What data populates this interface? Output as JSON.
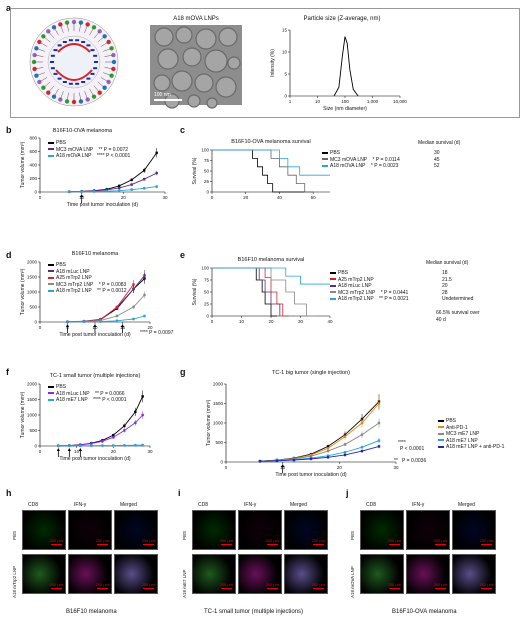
{
  "panels": {
    "a": {
      "label": "a",
      "tem_title": "A18 mOVA LNPs",
      "tem_scale": "100 nm",
      "dls_title": "Particle size (Z-average, nm)"
    },
    "b": {
      "label": "b"
    },
    "c": {
      "label": "c"
    },
    "d": {
      "label": "d"
    },
    "e": {
      "label": "e"
    },
    "f": {
      "label": "f"
    },
    "g": {
      "label": "g"
    },
    "h": {
      "label": "h"
    },
    "i": {
      "label": "i"
    },
    "j": {
      "label": "j"
    }
  },
  "legend_b": [
    {
      "name": "PBS",
      "color": "#000000",
      "stat": ""
    },
    {
      "name": "MC3 mOVA LNP",
      "color": "#5b2a86",
      "stat": "** P = 0.0072"
    },
    {
      "name": "A18 mOVA LNP",
      "color": "#29a3d8",
      "stat": "**** P < 0.0001"
    }
  ],
  "legend_c": {
    "header": "Median survival (d)",
    "rows": [
      {
        "name": "PBS",
        "color": "#000000",
        "stat": "",
        "median": "30"
      },
      {
        "name": "MC3 mOVA LNP",
        "color": "#666666",
        "stat": "* P = 0.0114",
        "median": "45"
      },
      {
        "name": "A18 mOVA LNP",
        "color": "#29a3d8",
        "stat": "* P = 0.0023",
        "median": "52"
      }
    ]
  },
  "legend_d": [
    {
      "name": "PBS",
      "color": "#000000",
      "stat": ""
    },
    {
      "name": "A18 mLuc LNP",
      "color": "#5b2a86",
      "stat": ""
    },
    {
      "name": "A25 mTrp2 LNP",
      "color": "#d8232a",
      "stat": ""
    },
    {
      "name": "MC3 mTrp2 LNP",
      "color": "#888888",
      "stat": "* P = 0.0083"
    },
    {
      "name": "A18 mTrp2 LNP",
      "color": "#29a3d8",
      "stat": "** P = 0.0012"
    }
  ],
  "legend_e": {
    "header": "Median survival (d)",
    "rows": [
      {
        "name": "PBS",
        "color": "#000000",
        "stat": "",
        "median": "18"
      },
      {
        "name": "A25 mTrp2 LNP",
        "color": "#d8232a",
        "stat": "",
        "median": "21.5"
      },
      {
        "name": "A18 mLuc LNP",
        "color": "#5b2a86",
        "stat": "",
        "median": "20"
      },
      {
        "name": "MC3 mTrp2 LNP",
        "color": "#888888",
        "stat": "* P = 0.0441",
        "median": "28"
      },
      {
        "name": "A18 mTrp2 LNP",
        "color": "#29a3d8",
        "stat": "** P = 0.0021",
        "median": "Undetermined"
      }
    ],
    "note": "66.5% survival over 40 d"
  },
  "legend_f": [
    {
      "name": "PBS",
      "color": "#000000",
      "stat": ""
    },
    {
      "name": "A18 mLuc LNP",
      "color": "#8a2be2",
      "stat": "** P = 0.0066"
    },
    {
      "name": "A18 mE7 LNP",
      "color": "#29a3d8",
      "stat": "**** P < 0.0001"
    }
  ],
  "legend_g": [
    {
      "name": "PBS",
      "color": "#000000"
    },
    {
      "name": "Anti-PD-1",
      "color": "#e08a1e"
    },
    {
      "name": "MC3 mE7 LNP",
      "color": "#888888"
    },
    {
      "name": "A18 mE7 LNP",
      "color": "#29a3d8"
    },
    {
      "name": "A18 mE7 LNP + anti-PD-1",
      "color": "#1f2aa8"
    }
  ],
  "g_stats": {
    "s1": "****",
    "s2": "P < 0.0001",
    "s3": "**",
    "s4": "P = 0.0036"
  },
  "b_stat": "**** P = 0.0097",
  "microscopy": {
    "cols": [
      "CD8",
      "IFN-γ",
      "Merged"
    ],
    "scale": "200 μm",
    "h": {
      "rows": [
        "PBS",
        "A18 mTrp2 LNP"
      ],
      "caption": "B16F10 melanoma"
    },
    "i": {
      "rows": [
        "PBS",
        "A18 mE7 LNP"
      ],
      "caption": "TC-1 small tumor (multiple injections)"
    },
    "j": {
      "rows": [
        "PBS",
        "A18 mOVA LNP"
      ],
      "caption": "B16F10-OVA melanoma"
    }
  },
  "chart_data": [
    {
      "id": "a-dls",
      "type": "line",
      "title": "Particle size (Z-average, nm)",
      "xlabel": "Size (nm diameter)",
      "ylabel": "Intensity (%)",
      "xscale": "log",
      "xlim": [
        1,
        10000
      ],
      "xticks": [
        "1",
        "10",
        "100",
        "1,000",
        "10,000"
      ],
      "ylim": [
        0,
        15
      ],
      "yticks": [
        0,
        5,
        10,
        15
      ],
      "series": [
        {
          "x": [
            40,
            60,
            80,
            100,
            120,
            150,
            200,
            300
          ],
          "y": [
            0,
            2,
            9,
            13.5,
            12,
            6,
            1.5,
            0
          ]
        }
      ]
    },
    {
      "id": "b",
      "type": "line",
      "title": "B16F10-OVA melanoma",
      "xlabel": "Time post tumor inoculation (d)",
      "ylabel": "Tumor volume (mm³)",
      "xlim": [
        0,
        30
      ],
      "xticks": [
        0,
        10,
        20,
        30
      ],
      "ylim": [
        0,
        800
      ],
      "yticks": [
        0,
        200,
        400,
        600,
        800
      ],
      "arrows": [
        10
      ],
      "series": [
        {
          "name": "PBS",
          "color": "#000000",
          "x": [
            7,
            10,
            13,
            16,
            19,
            22,
            25,
            28
          ],
          "y": [
            5,
            10,
            20,
            40,
            90,
            180,
            320,
            580
          ]
        },
        {
          "name": "MC3 mOVA LNP",
          "color": "#5b2a86",
          "x": [
            7,
            10,
            13,
            16,
            19,
            22,
            25,
            28
          ],
          "y": [
            5,
            8,
            15,
            30,
            60,
            110,
            190,
            280
          ]
        },
        {
          "name": "A18 mOVA LNP",
          "color": "#29a3d8",
          "x": [
            7,
            10,
            13,
            16,
            19,
            22,
            25,
            28
          ],
          "y": [
            5,
            6,
            8,
            12,
            20,
            35,
            55,
            80
          ]
        }
      ]
    },
    {
      "id": "c",
      "type": "line",
      "title": "B16F10-OVA melanoma survival",
      "xlabel": "",
      "ylabel": "Survival (%)",
      "xlim": [
        0,
        70
      ],
      "xticks": [
        0,
        20,
        40,
        60
      ],
      "ylim": [
        0,
        100
      ],
      "yticks": [
        0,
        25,
        50,
        75,
        100
      ],
      "series": [
        {
          "name": "PBS",
          "color": "#000000",
          "x": [
            0,
            24,
            27,
            30,
            33,
            36,
            60
          ],
          "y": [
            100,
            80,
            60,
            40,
            20,
            0,
            0
          ]
        },
        {
          "name": "MC3 mOVA LNP",
          "color": "#666666",
          "x": [
            0,
            35,
            40,
            45,
            50,
            55,
            60
          ],
          "y": [
            100,
            80,
            60,
            40,
            20,
            0,
            0
          ]
        },
        {
          "name": "A18 mOVA LNP",
          "color": "#29a3d8",
          "x": [
            0,
            40,
            45,
            52,
            60,
            70
          ],
          "y": [
            100,
            80,
            60,
            40,
            40,
            40
          ]
        }
      ]
    },
    {
      "id": "d",
      "type": "line",
      "title": "B16F10 melanoma",
      "xlabel": "Time post tumor inoculation (d)",
      "ylabel": "Tumor volume (mm³)",
      "xlim": [
        0,
        20
      ],
      "xticks": [
        0,
        5,
        10,
        15,
        20
      ],
      "ylim": [
        0,
        2000
      ],
      "yticks": [
        0,
        500,
        1000,
        1500,
        2000
      ],
      "arrows": [
        5,
        10,
        15
      ],
      "series": [
        {
          "name": "PBS",
          "color": "#000000",
          "x": [
            5,
            8,
            11,
            14,
            17,
            19
          ],
          "y": [
            5,
            20,
            80,
            450,
            1100,
            1450
          ]
        },
        {
          "name": "A18 mLuc LNP",
          "color": "#5b2a86",
          "x": [
            5,
            8,
            11,
            14,
            17,
            19
          ],
          "y": [
            5,
            25,
            90,
            480,
            1100,
            1550
          ]
        },
        {
          "name": "A25 mTrp2 LNP",
          "color": "#d8232a",
          "x": [
            5,
            8,
            11,
            14,
            17
          ],
          "y": [
            5,
            20,
            70,
            500,
            1250
          ]
        },
        {
          "name": "MC3 mTrp2 LNP",
          "color": "#888888",
          "x": [
            5,
            8,
            11,
            14,
            17,
            19
          ],
          "y": [
            5,
            15,
            50,
            200,
            500,
            900
          ]
        },
        {
          "name": "A18 mTrp2 LNP",
          "color": "#29a3d8",
          "x": [
            5,
            8,
            11,
            14,
            17,
            19
          ],
          "y": [
            5,
            8,
            15,
            40,
            100,
            200
          ]
        }
      ]
    },
    {
      "id": "e",
      "type": "line",
      "title": "B16F10 melanoma survival",
      "xlabel": "",
      "ylabel": "Survival (%)",
      "xlim": [
        0,
        40
      ],
      "xticks": [
        0,
        10,
        20,
        30,
        40
      ],
      "ylim": [
        0,
        100
      ],
      "yticks": [
        0,
        25,
        50,
        75,
        100
      ],
      "series": [
        {
          "name": "PBS",
          "color": "#000000",
          "x": [
            0,
            15,
            17,
            18,
            20,
            22
          ],
          "y": [
            100,
            75,
            50,
            25,
            0,
            0
          ]
        },
        {
          "name": "A25 mTrp2 LNP",
          "color": "#d8232a",
          "x": [
            0,
            18,
            20,
            22,
            24,
            26
          ],
          "y": [
            100,
            80,
            50,
            25,
            0,
            0
          ]
        },
        {
          "name": "A18 mLuc LNP",
          "color": "#5b2a86",
          "x": [
            0,
            16,
            18,
            20,
            23
          ],
          "y": [
            100,
            75,
            50,
            25,
            0
          ]
        },
        {
          "name": "MC3 mTrp2 LNP",
          "color": "#888888",
          "x": [
            0,
            20,
            25,
            28,
            32,
            36
          ],
          "y": [
            100,
            75,
            50,
            25,
            0,
            0
          ]
        },
        {
          "name": "A18 mTrp2 LNP",
          "color": "#29a3d8",
          "x": [
            0,
            25,
            30,
            40
          ],
          "y": [
            100,
            83,
            66.5,
            66.5
          ]
        }
      ]
    },
    {
      "id": "f",
      "type": "line",
      "title": "TC-1 small tumor (multiple injections)",
      "xlabel": "Time post tumor inoculation (d)",
      "ylabel": "Tumor volume (mm³)",
      "xlim": [
        0,
        30
      ],
      "xticks": [
        0,
        10,
        20,
        30
      ],
      "ylim": [
        0,
        2000
      ],
      "yticks": [
        0,
        500,
        1000,
        1500,
        2000
      ],
      "arrows": [
        5,
        8,
        11
      ],
      "series": [
        {
          "name": "PBS",
          "color": "#000000",
          "x": [
            5,
            8,
            11,
            14,
            17,
            20,
            23,
            26,
            28
          ],
          "y": [
            5,
            15,
            40,
            90,
            180,
            350,
            650,
            1100,
            1600
          ]
        },
        {
          "name": "A18 mLuc LNP",
          "color": "#8a2be2",
          "x": [
            5,
            8,
            11,
            14,
            17,
            20,
            23,
            26,
            28
          ],
          "y": [
            5,
            15,
            35,
            80,
            150,
            280,
            500,
            750,
            1000
          ]
        },
        {
          "name": "A18 mE7 LNP",
          "color": "#29a3d8",
          "x": [
            5,
            8,
            11,
            14,
            17,
            20,
            23,
            26,
            28
          ],
          "y": [
            5,
            6,
            8,
            10,
            12,
            15,
            20,
            25,
            30
          ]
        }
      ]
    },
    {
      "id": "g",
      "type": "line",
      "title": "TC-1 big tumor (single injection)",
      "xlabel": "Time post tumor inoculation (d)",
      "ylabel": "Tumor volume (mm³)",
      "xlim": [
        0,
        30
      ],
      "xticks": [
        0,
        10,
        20,
        30
      ],
      "ylim": [
        0,
        2000
      ],
      "yticks": [
        0,
        500,
        1000,
        1500,
        2000
      ],
      "arrows": [
        10
      ],
      "series": [
        {
          "name": "PBS",
          "color": "#000000",
          "x": [
            6,
            9,
            12,
            15,
            18,
            21,
            24,
            27
          ],
          "y": [
            20,
            50,
            100,
            200,
            400,
            700,
            1100,
            1550
          ]
        },
        {
          "name": "Anti-PD-1",
          "color": "#e08a1e",
          "x": [
            6,
            9,
            12,
            15,
            18,
            21,
            24,
            27
          ],
          "y": [
            20,
            45,
            90,
            180,
            350,
            650,
            1000,
            1500
          ]
        },
        {
          "name": "MC3 mE7 LNP",
          "color": "#888888",
          "x": [
            6,
            9,
            12,
            15,
            18,
            21,
            24,
            27
          ],
          "y": [
            20,
            40,
            80,
            150,
            280,
            450,
            700,
            1000
          ]
        },
        {
          "name": "A18 mE7 LNP",
          "color": "#29a3d8",
          "x": [
            6,
            9,
            12,
            15,
            18,
            21,
            24,
            27
          ],
          "y": [
            20,
            35,
            60,
            100,
            160,
            250,
            380,
            550
          ]
        },
        {
          "name": "A18 mE7 LNP + anti-PD-1",
          "color": "#1f2aa8",
          "x": [
            6,
            9,
            12,
            15,
            18,
            21,
            24,
            27
          ],
          "y": [
            20,
            30,
            50,
            80,
            120,
            180,
            280,
            400
          ]
        }
      ]
    }
  ]
}
